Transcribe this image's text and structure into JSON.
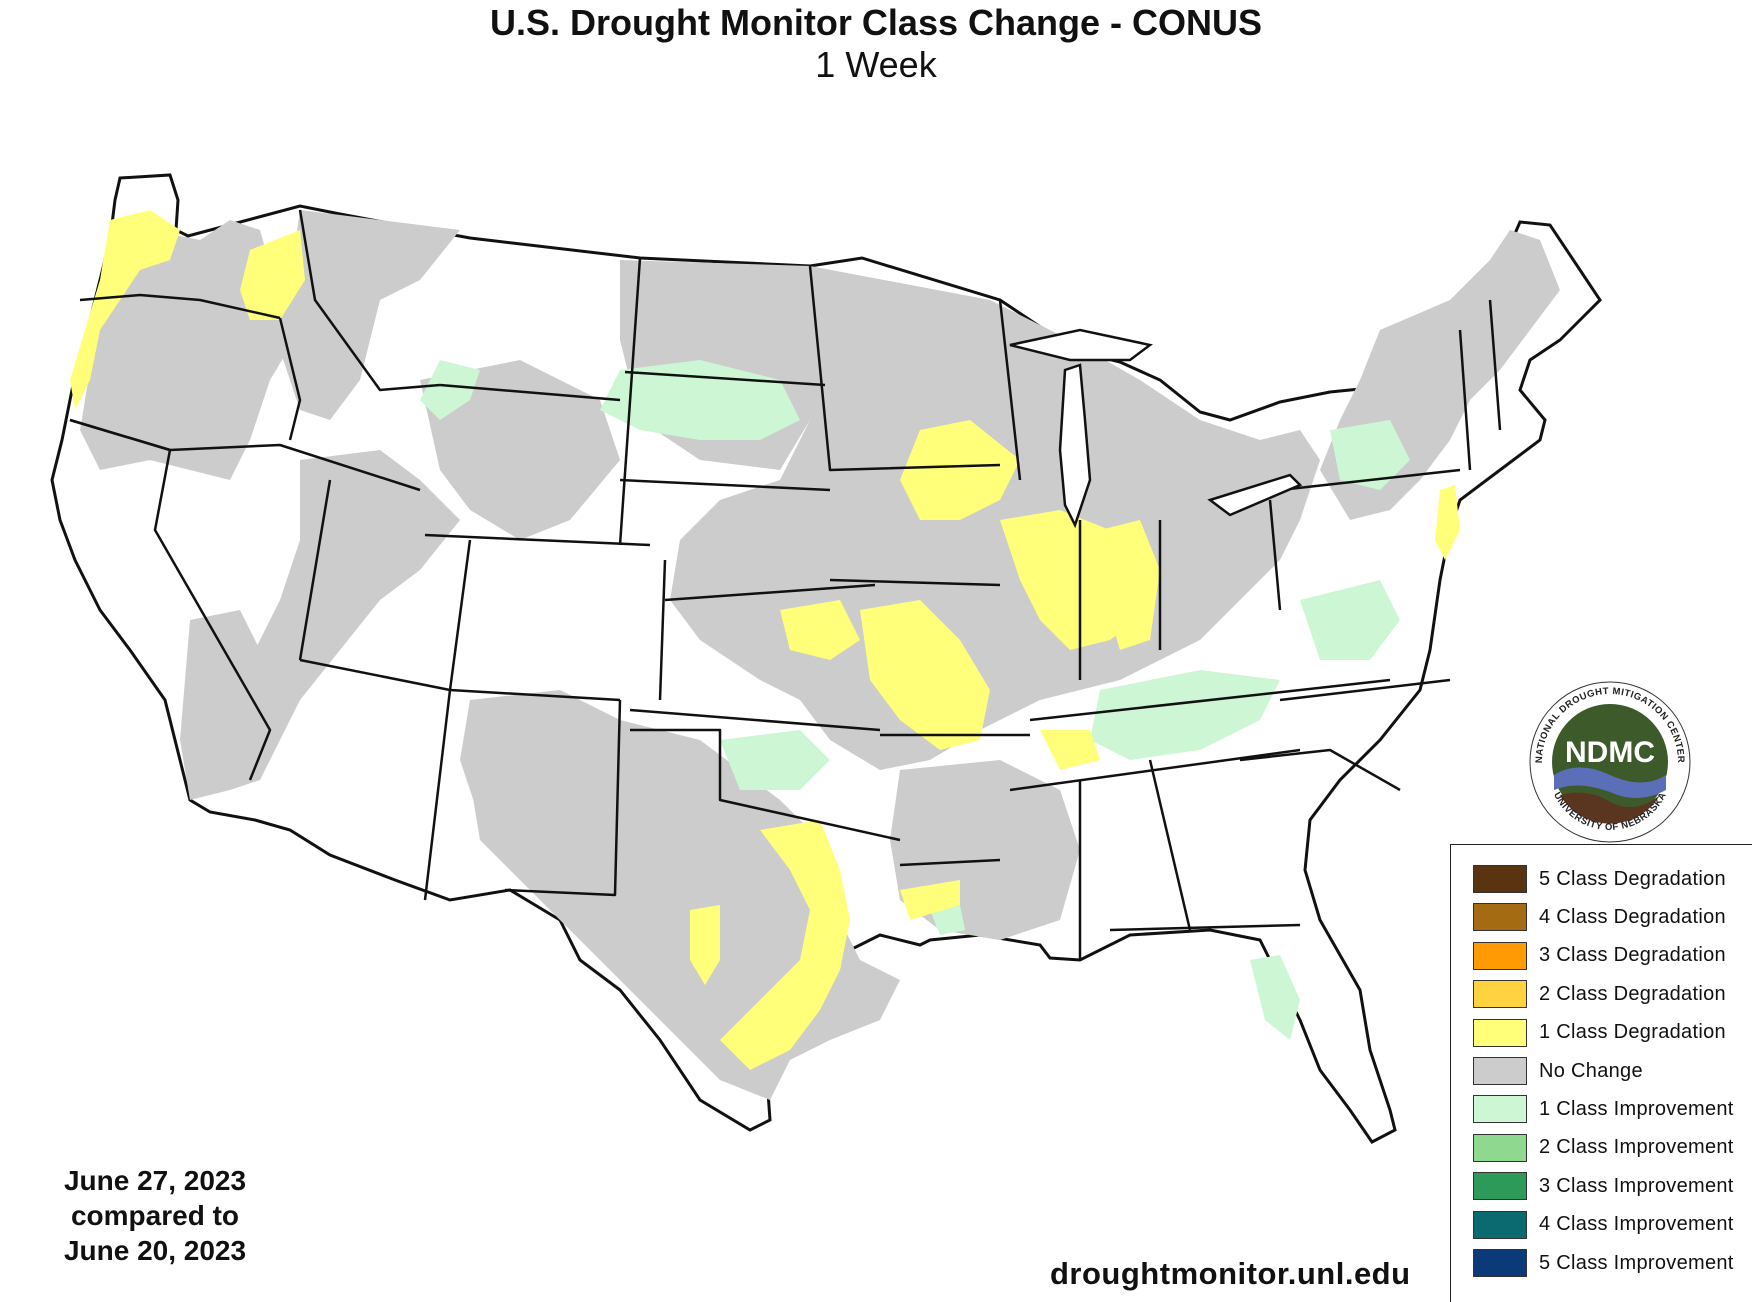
{
  "title": "U.S. Drought Monitor Class Change - CONUS",
  "subtitle": "1 Week",
  "dates": {
    "line1": "June 27, 2023",
    "line2": "compared to",
    "line3": "June 20, 2023"
  },
  "site_url": "droughtmonitor.unl.edu",
  "logo": {
    "text": "NDMC",
    "ring_top": "NATIONAL DROUGHT MITIGATION CENTER",
    "ring_bottom": "UNIVERSITY OF NEBRASKA",
    "colors": {
      "green": "#3d5a2b",
      "blue": "#5a6fb8",
      "brown": "#5a3520"
    }
  },
  "legend": [
    {
      "label": "5 Class Degradation",
      "color": "#5a3410"
    },
    {
      "label": "4 Class Degradation",
      "color": "#a56b12"
    },
    {
      "label": "3 Class Degradation",
      "color": "#ff9a05"
    },
    {
      "label": "2 Class Degradation",
      "color": "#ffd23f"
    },
    {
      "label": "1 Class Degradation",
      "color": "#ffff7a"
    },
    {
      "label": "No Change",
      "color": "#cccccc"
    },
    {
      "label": "1 Class Improvement",
      "color": "#cdf7d4"
    },
    {
      "label": "2 Class Improvement",
      "color": "#8fd88f"
    },
    {
      "label": "3 Class Improvement",
      "color": "#2e9a5a"
    },
    {
      "label": "4 Class Improvement",
      "color": "#0a6a70"
    },
    {
      "label": "5 Class Improvement",
      "color": "#0b3a78"
    }
  ],
  "map_colors": {
    "no_change": "#cccccc",
    "degradation_1": "#ffff7a",
    "improvement_1": "#cdf7d4",
    "background": "#ffffff",
    "border": "#111111"
  }
}
